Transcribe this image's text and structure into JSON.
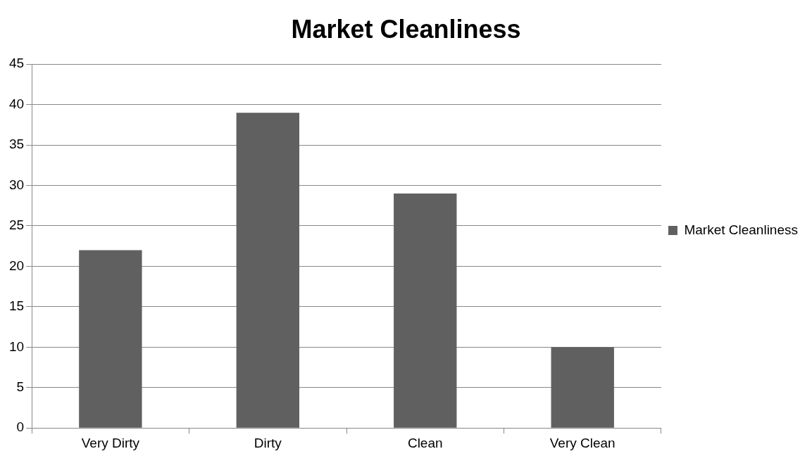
{
  "chart_data": {
    "type": "bar",
    "title": "Market Cleanliness",
    "categories": [
      "Very Dirty",
      "Dirty",
      "Clean",
      "Very Clean"
    ],
    "series": [
      {
        "name": "Market Cleanliness",
        "color": "#606060",
        "values": [
          22,
          39,
          29,
          10
        ]
      }
    ],
    "ylim": [
      0,
      45
    ],
    "yticks": [
      0,
      5,
      10,
      15,
      20,
      25,
      30,
      35,
      40,
      45
    ],
    "grid": "y",
    "legend": "right"
  }
}
